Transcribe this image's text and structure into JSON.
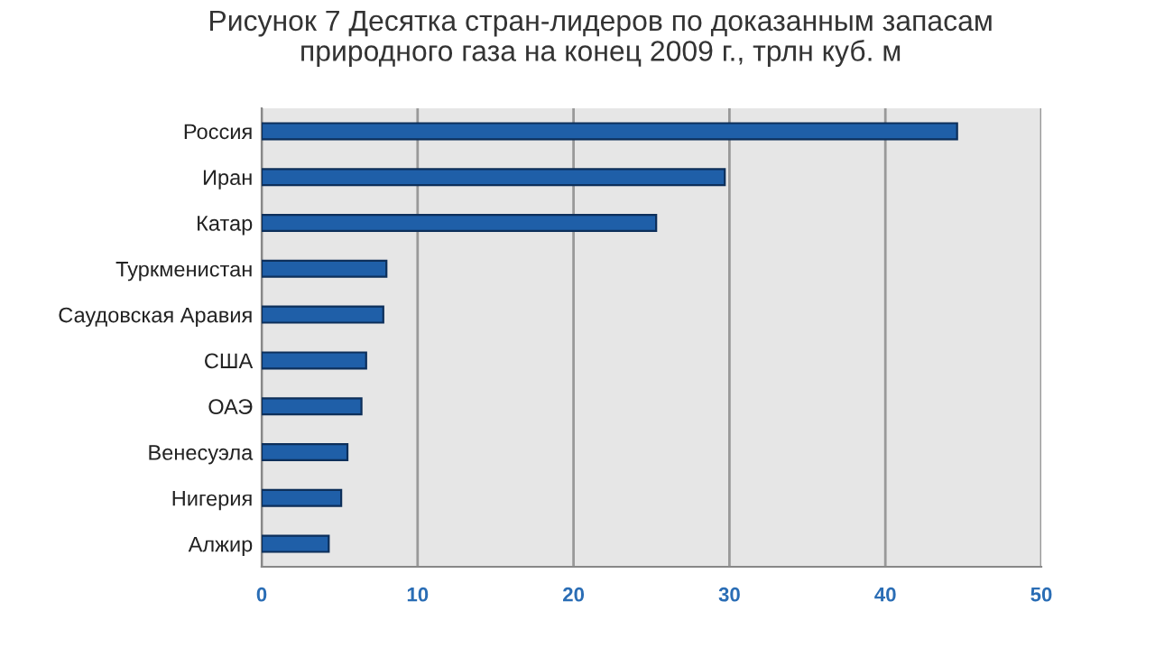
{
  "chart_data": {
    "type": "bar",
    "orientation": "horizontal",
    "title": "Рисунок 7 Десятка стран-лидеров по доказанным запасам\nприродного газа на конец 2009 г., трлн куб. м",
    "categories": [
      "Россия",
      "Иран",
      "Катар",
      "Туркменистан",
      "Саудовская Аравия",
      "США",
      "ОАЭ",
      "Венесуэла",
      "Нигерия",
      "Алжир"
    ],
    "values": [
      44.6,
      29.7,
      25.3,
      8.0,
      7.8,
      6.7,
      6.4,
      5.5,
      5.1,
      4.3
    ],
    "color": "#1f5fa8",
    "xlim": [
      0,
      50
    ],
    "xticks": [
      0,
      10,
      20,
      30,
      40,
      50
    ],
    "grid": "x"
  }
}
